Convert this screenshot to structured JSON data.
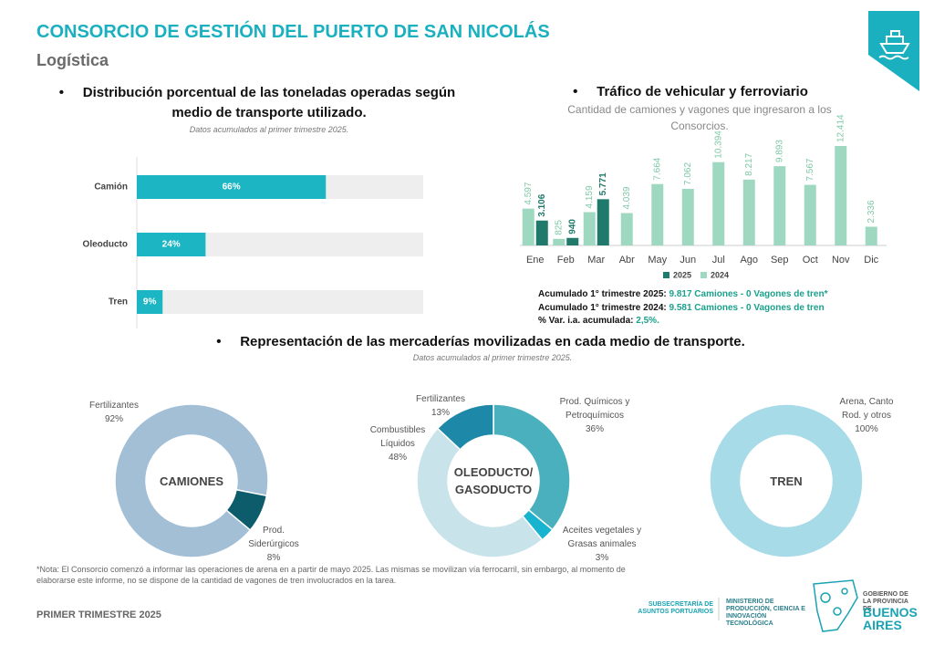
{
  "header": {
    "title": "CONSORCIO DE GESTIÓN DEL PUERTO DE SAN NICOLÁS",
    "subtitle": "Logística"
  },
  "chart_data": [
    {
      "type": "hbar",
      "title": "Distribución porcentual de las toneladas operadas según medio de transporte utilizado.",
      "subtitle": "Datos acumulados al primer trimestre 2025.",
      "categories": [
        "Camión",
        "Oleoducto",
        "Tren"
      ],
      "values": [
        66,
        24,
        9
      ],
      "value_labels": [
        "66%",
        "24%",
        "9%"
      ],
      "xlim": [
        0,
        100
      ],
      "color": "#1bb5c4"
    },
    {
      "type": "bar",
      "title": "Tráfico de vehicular y ferroviario",
      "subtitle": "Cantidad de camiones y vagones que ingresaron a los Consorcios.",
      "categories": [
        "Ene",
        "Feb",
        "Mar",
        "Abr",
        "May",
        "Jun",
        "Jul",
        "Ago",
        "Sep",
        "Oct",
        "Nov",
        "Dic"
      ],
      "series": [
        {
          "name": "2025",
          "color": "#1f7a6b",
          "values": [
            3106,
            940,
            5771,
            null,
            null,
            null,
            null,
            null,
            null,
            null,
            null,
            null
          ],
          "value_labels": [
            "3.106",
            "940",
            "5.771",
            null,
            null,
            null,
            null,
            null,
            null,
            null,
            null,
            null
          ]
        },
        {
          "name": "2024",
          "color": "#9fd8c0",
          "values": [
            4597,
            825,
            4159,
            4039,
            7664,
            7062,
            10394,
            8217,
            9893,
            7567,
            12414,
            2336
          ],
          "value_labels": [
            "4.597",
            "825",
            "4.159",
            "4.039",
            "7.664",
            "7.062",
            "10.394",
            "8.217",
            "9.893",
            "7.567",
            "12.414",
            "2.336"
          ]
        }
      ]
    },
    {
      "type": "donut",
      "center": "CAMIONES",
      "categories": [
        "Fertilizantes",
        "Prod. Siderúrgicos"
      ],
      "values": [
        92,
        8
      ],
      "value_labels": [
        "92%",
        "8%"
      ],
      "colors": [
        "#a3bfd6",
        "#0d5c6b"
      ]
    },
    {
      "type": "donut",
      "center": "OLEODUCTO/ GASODUCTO",
      "categories": [
        "Prod. Químicos y Petroquímicos",
        "Aceites vegetales y Grasas animales",
        "Combustibles Líquidos",
        "Fertilizantes"
      ],
      "values": [
        36,
        3,
        48,
        13
      ],
      "value_labels": [
        "36%",
        "3%",
        "48%",
        "13%"
      ],
      "colors": [
        "#4bb0bd",
        "#17b3cf",
        "#c9e3ea",
        "#1e88a8"
      ]
    },
    {
      "type": "donut",
      "center": "TREN",
      "categories": [
        "Arena, Canto Rod. y otros"
      ],
      "values": [
        100
      ],
      "value_labels": [
        "100%"
      ],
      "colors": [
        "#a8dbe8"
      ]
    }
  ],
  "summary": [
    {
      "label": "Acumulado 1° trimestre 2025:",
      "value": "9.817 Camiones - 0 Vagones de tren*"
    },
    {
      "label": "Acumulado 1° trimestre 2024:",
      "value": "9.581 Camiones - 0 Vagones de tren"
    },
    {
      "label": "% Var. i.a. acumulada:",
      "value": "2,5%."
    }
  ],
  "section": {
    "title": "Representación de las mercaderías movilizadas en cada medio de transporte.",
    "subtitle": "Datos acumulados al primer trimestre 2025."
  },
  "note": "*Nota: El Consorcio comenzó a informar las operaciones de arena en a partir de mayo 2025. Las mismas se movilizan vía ferrocarril, sin embargo, al momento de elaborarse este informe, no se dispone de la cantidad de vagones de tren involucrados en la tarea.",
  "footer": {
    "period": "PRIMER TRIMESTRE 2025",
    "logo1": "SUBSECRETARÍA DE ASUNTOS PORTUARIOS",
    "logo2": "MINISTERIO DE PRODUCCIÓN, CIENCIA E INNOVACIÓN TECNOLÓGICA",
    "logo3a": "GOBIERNO DE LA PROVINCIA DE",
    "logo3b": "BUENOS AIRES"
  }
}
